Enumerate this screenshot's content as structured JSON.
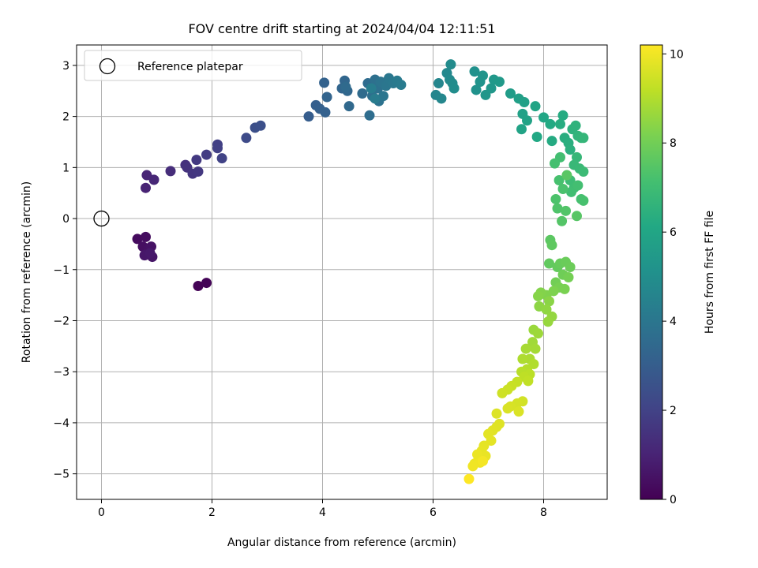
{
  "chart_data": {
    "type": "scatter",
    "title": "FOV centre drift starting at 2024/04/04 12:11:51",
    "xlabel": "Angular distance from reference (arcmin)",
    "ylabel": "Rotation from reference (arcmin)",
    "xlim": [
      -0.45,
      9.15
    ],
    "ylim": [
      -5.5,
      3.4
    ],
    "xticks": [
      0,
      2,
      4,
      6,
      8
    ],
    "yticks": [
      -5,
      -4,
      -3,
      -2,
      -1,
      0,
      1,
      2,
      3
    ],
    "grid": true,
    "legend_placement": "top-left",
    "legend": [
      {
        "label": "Reference platepar",
        "marker": "open-circle",
        "x": 0,
        "y": 0
      }
    ],
    "colorbar": {
      "label": "Hours from first FF file",
      "colormap": "viridis",
      "range": [
        0,
        10.2
      ],
      "ticks": [
        0,
        2,
        4,
        6,
        8,
        10
      ]
    },
    "series": [
      {
        "color_by": "hours",
        "points": [
          {
            "x": 1.75,
            "y": -1.32,
            "c": 0.05
          },
          {
            "x": 1.9,
            "y": -1.26,
            "c": 0.1
          },
          {
            "x": 0.65,
            "y": -0.4,
            "c": 0.3
          },
          {
            "x": 0.8,
            "y": -0.36,
            "c": 0.35
          },
          {
            "x": 0.75,
            "y": -0.55,
            "c": 0.4
          },
          {
            "x": 0.85,
            "y": -0.6,
            "c": 0.45
          },
          {
            "x": 0.9,
            "y": -0.55,
            "c": 0.5
          },
          {
            "x": 0.8,
            "y": -0.7,
            "c": 0.55
          },
          {
            "x": 0.92,
            "y": -0.75,
            "c": 0.6
          },
          {
            "x": 0.78,
            "y": -0.72,
            "c": 0.65
          },
          {
            "x": 0.88,
            "y": -0.68,
            "c": 0.7
          },
          {
            "x": 0.8,
            "y": 0.6,
            "c": 1.0
          },
          {
            "x": 0.82,
            "y": 0.85,
            "c": 1.05
          },
          {
            "x": 0.95,
            "y": 0.76,
            "c": 1.1
          },
          {
            "x": 1.25,
            "y": 0.93,
            "c": 1.3
          },
          {
            "x": 1.52,
            "y": 1.05,
            "c": 1.45
          },
          {
            "x": 1.55,
            "y": 1.0,
            "c": 1.5
          },
          {
            "x": 1.65,
            "y": 0.88,
            "c": 1.6
          },
          {
            "x": 1.75,
            "y": 0.92,
            "c": 1.65
          },
          {
            "x": 1.72,
            "y": 1.15,
            "c": 1.7
          },
          {
            "x": 1.9,
            "y": 1.25,
            "c": 1.8
          },
          {
            "x": 2.1,
            "y": 1.45,
            "c": 1.9
          },
          {
            "x": 2.1,
            "y": 1.38,
            "c": 1.95
          },
          {
            "x": 2.18,
            "y": 1.18,
            "c": 2.0
          },
          {
            "x": 2.62,
            "y": 1.58,
            "c": 2.3
          },
          {
            "x": 2.78,
            "y": 1.78,
            "c": 2.45
          },
          {
            "x": 2.88,
            "y": 1.82,
            "c": 2.5
          },
          {
            "x": 3.75,
            "y": 2.0,
            "c": 3.0
          },
          {
            "x": 3.88,
            "y": 2.22,
            "c": 3.05
          },
          {
            "x": 3.95,
            "y": 2.15,
            "c": 3.1
          },
          {
            "x": 4.05,
            "y": 2.08,
            "c": 3.15
          },
          {
            "x": 4.03,
            "y": 2.66,
            "c": 3.2
          },
          {
            "x": 4.08,
            "y": 2.38,
            "c": 3.25
          },
          {
            "x": 4.35,
            "y": 2.55,
            "c": 3.3
          },
          {
            "x": 4.4,
            "y": 2.7,
            "c": 3.35
          },
          {
            "x": 4.45,
            "y": 2.5,
            "c": 3.4
          },
          {
            "x": 4.48,
            "y": 2.2,
            "c": 3.45
          },
          {
            "x": 4.42,
            "y": 2.58,
            "c": 3.5
          },
          {
            "x": 4.72,
            "y": 2.45,
            "c": 3.55
          },
          {
            "x": 4.82,
            "y": 2.65,
            "c": 3.6
          },
          {
            "x": 4.85,
            "y": 2.02,
            "c": 3.65
          },
          {
            "x": 4.9,
            "y": 2.4,
            "c": 3.7
          },
          {
            "x": 4.95,
            "y": 2.72,
            "c": 3.75
          },
          {
            "x": 5.0,
            "y": 2.55,
            "c": 3.8
          },
          {
            "x": 5.02,
            "y": 2.3,
            "c": 3.85
          },
          {
            "x": 5.05,
            "y": 2.68,
            "c": 3.9
          },
          {
            "x": 5.1,
            "y": 2.4,
            "c": 3.95
          },
          {
            "x": 5.15,
            "y": 2.6,
            "c": 4.0
          },
          {
            "x": 5.2,
            "y": 2.75,
            "c": 4.05
          },
          {
            "x": 5.28,
            "y": 2.65,
            "c": 4.1
          },
          {
            "x": 5.35,
            "y": 2.7,
            "c": 4.15
          },
          {
            "x": 5.42,
            "y": 2.62,
            "c": 4.2
          },
          {
            "x": 4.95,
            "y": 2.35,
            "c": 4.25
          },
          {
            "x": 4.88,
            "y": 2.55,
            "c": 4.3
          },
          {
            "x": 6.05,
            "y": 2.42,
            "c": 4.6
          },
          {
            "x": 6.1,
            "y": 2.65,
            "c": 4.65
          },
          {
            "x": 6.15,
            "y": 2.35,
            "c": 4.7
          },
          {
            "x": 6.25,
            "y": 2.85,
            "c": 4.75
          },
          {
            "x": 6.3,
            "y": 2.72,
            "c": 4.8
          },
          {
            "x": 6.32,
            "y": 3.02,
            "c": 4.85
          },
          {
            "x": 6.35,
            "y": 2.65,
            "c": 4.9
          },
          {
            "x": 6.38,
            "y": 2.55,
            "c": 4.95
          },
          {
            "x": 6.75,
            "y": 2.88,
            "c": 5.1
          },
          {
            "x": 6.78,
            "y": 2.52,
            "c": 5.15
          },
          {
            "x": 6.85,
            "y": 2.68,
            "c": 5.2
          },
          {
            "x": 6.9,
            "y": 2.8,
            "c": 5.25
          },
          {
            "x": 6.95,
            "y": 2.42,
            "c": 5.3
          },
          {
            "x": 7.05,
            "y": 2.55,
            "c": 5.35
          },
          {
            "x": 7.1,
            "y": 2.72,
            "c": 5.4
          },
          {
            "x": 7.2,
            "y": 2.68,
            "c": 5.45
          },
          {
            "x": 7.4,
            "y": 2.45,
            "c": 5.6
          },
          {
            "x": 7.55,
            "y": 2.35,
            "c": 5.7
          },
          {
            "x": 7.65,
            "y": 2.28,
            "c": 5.75
          },
          {
            "x": 7.62,
            "y": 2.05,
            "c": 5.8
          },
          {
            "x": 7.7,
            "y": 1.92,
            "c": 5.85
          },
          {
            "x": 7.6,
            "y": 1.75,
            "c": 5.9
          },
          {
            "x": 7.85,
            "y": 2.2,
            "c": 5.95
          },
          {
            "x": 8.0,
            "y": 1.98,
            "c": 6.05
          },
          {
            "x": 7.88,
            "y": 1.6,
            "c": 6.1
          },
          {
            "x": 8.12,
            "y": 1.85,
            "c": 6.15
          },
          {
            "x": 8.15,
            "y": 1.52,
            "c": 6.2
          },
          {
            "x": 8.35,
            "y": 2.02,
            "c": 6.25
          },
          {
            "x": 8.3,
            "y": 1.85,
            "c": 6.3
          },
          {
            "x": 8.38,
            "y": 1.58,
            "c": 6.35
          },
          {
            "x": 8.45,
            "y": 1.48,
            "c": 6.4
          },
          {
            "x": 8.48,
            "y": 1.35,
            "c": 6.45
          },
          {
            "x": 8.52,
            "y": 1.75,
            "c": 6.5
          },
          {
            "x": 8.58,
            "y": 1.82,
            "c": 6.55
          },
          {
            "x": 8.62,
            "y": 1.62,
            "c": 6.6
          },
          {
            "x": 8.68,
            "y": 1.58,
            "c": 6.65
          },
          {
            "x": 8.72,
            "y": 1.58,
            "c": 6.7
          },
          {
            "x": 8.6,
            "y": 1.2,
            "c": 6.75
          },
          {
            "x": 8.55,
            "y": 1.05,
            "c": 6.8
          },
          {
            "x": 8.65,
            "y": 0.98,
            "c": 6.85
          },
          {
            "x": 8.72,
            "y": 0.92,
            "c": 6.9
          },
          {
            "x": 8.48,
            "y": 0.75,
            "c": 6.95
          },
          {
            "x": 8.55,
            "y": 0.6,
            "c": 7.0
          },
          {
            "x": 8.5,
            "y": 0.52,
            "c": 7.05
          },
          {
            "x": 8.62,
            "y": 0.65,
            "c": 7.1
          },
          {
            "x": 8.68,
            "y": 0.38,
            "c": 7.15
          },
          {
            "x": 8.72,
            "y": 0.35,
            "c": 7.2
          },
          {
            "x": 8.3,
            "y": 1.2,
            "c": 7.1
          },
          {
            "x": 8.2,
            "y": 1.08,
            "c": 7.15
          },
          {
            "x": 8.28,
            "y": 0.75,
            "c": 7.2
          },
          {
            "x": 8.35,
            "y": 0.58,
            "c": 7.25
          },
          {
            "x": 8.22,
            "y": 0.38,
            "c": 7.3
          },
          {
            "x": 8.25,
            "y": 0.2,
            "c": 7.35
          },
          {
            "x": 8.4,
            "y": 0.15,
            "c": 7.4
          },
          {
            "x": 8.33,
            "y": -0.05,
            "c": 7.45
          },
          {
            "x": 8.6,
            "y": 0.05,
            "c": 7.5
          },
          {
            "x": 8.42,
            "y": 0.85,
            "c": 7.55
          },
          {
            "x": 8.12,
            "y": -0.42,
            "c": 7.6
          },
          {
            "x": 8.15,
            "y": -0.52,
            "c": 7.65
          },
          {
            "x": 8.1,
            "y": -0.88,
            "c": 7.7
          },
          {
            "x": 8.25,
            "y": -0.95,
            "c": 7.75
          },
          {
            "x": 8.3,
            "y": -0.88,
            "c": 7.8
          },
          {
            "x": 8.4,
            "y": -0.85,
            "c": 7.85
          },
          {
            "x": 8.48,
            "y": -0.95,
            "c": 7.9
          },
          {
            "x": 8.35,
            "y": -1.1,
            "c": 7.95
          },
          {
            "x": 8.22,
            "y": -1.25,
            "c": 8.0
          },
          {
            "x": 8.45,
            "y": -1.15,
            "c": 8.05
          },
          {
            "x": 8.28,
            "y": -1.35,
            "c": 8.1
          },
          {
            "x": 8.38,
            "y": -1.38,
            "c": 8.15
          },
          {
            "x": 8.18,
            "y": -1.42,
            "c": 8.2
          },
          {
            "x": 8.05,
            "y": -1.5,
            "c": 8.25
          },
          {
            "x": 7.95,
            "y": -1.45,
            "c": 8.3
          },
          {
            "x": 7.9,
            "y": -1.52,
            "c": 8.35
          },
          {
            "x": 8.1,
            "y": -1.62,
            "c": 8.4
          },
          {
            "x": 7.92,
            "y": -1.72,
            "c": 8.45
          },
          {
            "x": 8.05,
            "y": -1.78,
            "c": 8.5
          },
          {
            "x": 8.15,
            "y": -1.92,
            "c": 8.55
          },
          {
            "x": 8.08,
            "y": -2.02,
            "c": 8.6
          },
          {
            "x": 7.82,
            "y": -2.18,
            "c": 8.65
          },
          {
            "x": 7.9,
            "y": -2.25,
            "c": 8.7
          },
          {
            "x": 7.8,
            "y": -2.42,
            "c": 8.75
          },
          {
            "x": 7.85,
            "y": -2.55,
            "c": 8.8
          },
          {
            "x": 7.68,
            "y": -2.55,
            "c": 8.85
          },
          {
            "x": 7.75,
            "y": -2.75,
            "c": 8.9
          },
          {
            "x": 7.62,
            "y": -2.75,
            "c": 8.95
          },
          {
            "x": 7.82,
            "y": -2.85,
            "c": 9.0
          },
          {
            "x": 7.7,
            "y": -2.95,
            "c": 9.05
          },
          {
            "x": 7.6,
            "y": -3.0,
            "c": 9.1
          },
          {
            "x": 7.75,
            "y": -3.05,
            "c": 9.15
          },
          {
            "x": 7.65,
            "y": -3.1,
            "c": 9.2
          },
          {
            "x": 7.72,
            "y": -3.18,
            "c": 9.25
          },
          {
            "x": 7.52,
            "y": -3.2,
            "c": 9.3
          },
          {
            "x": 7.42,
            "y": -3.28,
            "c": 9.35
          },
          {
            "x": 7.35,
            "y": -3.35,
            "c": 9.4
          },
          {
            "x": 7.25,
            "y": -3.42,
            "c": 9.45
          },
          {
            "x": 7.62,
            "y": -3.58,
            "c": 9.5
          },
          {
            "x": 7.52,
            "y": -3.62,
            "c": 9.55
          },
          {
            "x": 7.4,
            "y": -3.68,
            "c": 9.6
          },
          {
            "x": 7.35,
            "y": -3.72,
            "c": 9.62
          },
          {
            "x": 7.55,
            "y": -3.78,
            "c": 9.65
          },
          {
            "x": 7.15,
            "y": -3.82,
            "c": 9.68
          },
          {
            "x": 7.2,
            "y": -4.02,
            "c": 9.7
          },
          {
            "x": 7.15,
            "y": -4.08,
            "c": 9.72
          },
          {
            "x": 7.08,
            "y": -4.15,
            "c": 9.75
          },
          {
            "x": 7.0,
            "y": -4.22,
            "c": 9.78
          },
          {
            "x": 7.05,
            "y": -4.35,
            "c": 9.8
          },
          {
            "x": 6.92,
            "y": -4.45,
            "c": 9.82
          },
          {
            "x": 6.88,
            "y": -4.55,
            "c": 9.85
          },
          {
            "x": 6.95,
            "y": -4.65,
            "c": 9.88
          },
          {
            "x": 6.82,
            "y": -4.72,
            "c": 9.9
          },
          {
            "x": 6.8,
            "y": -4.62,
            "c": 9.92
          },
          {
            "x": 6.75,
            "y": -4.8,
            "c": 9.95
          },
          {
            "x": 6.85,
            "y": -4.78,
            "c": 9.97
          },
          {
            "x": 6.72,
            "y": -4.85,
            "c": 10.0
          },
          {
            "x": 6.9,
            "y": -4.75,
            "c": 10.05
          },
          {
            "x": 6.65,
            "y": -5.1,
            "c": 10.2
          }
        ]
      }
    ]
  }
}
